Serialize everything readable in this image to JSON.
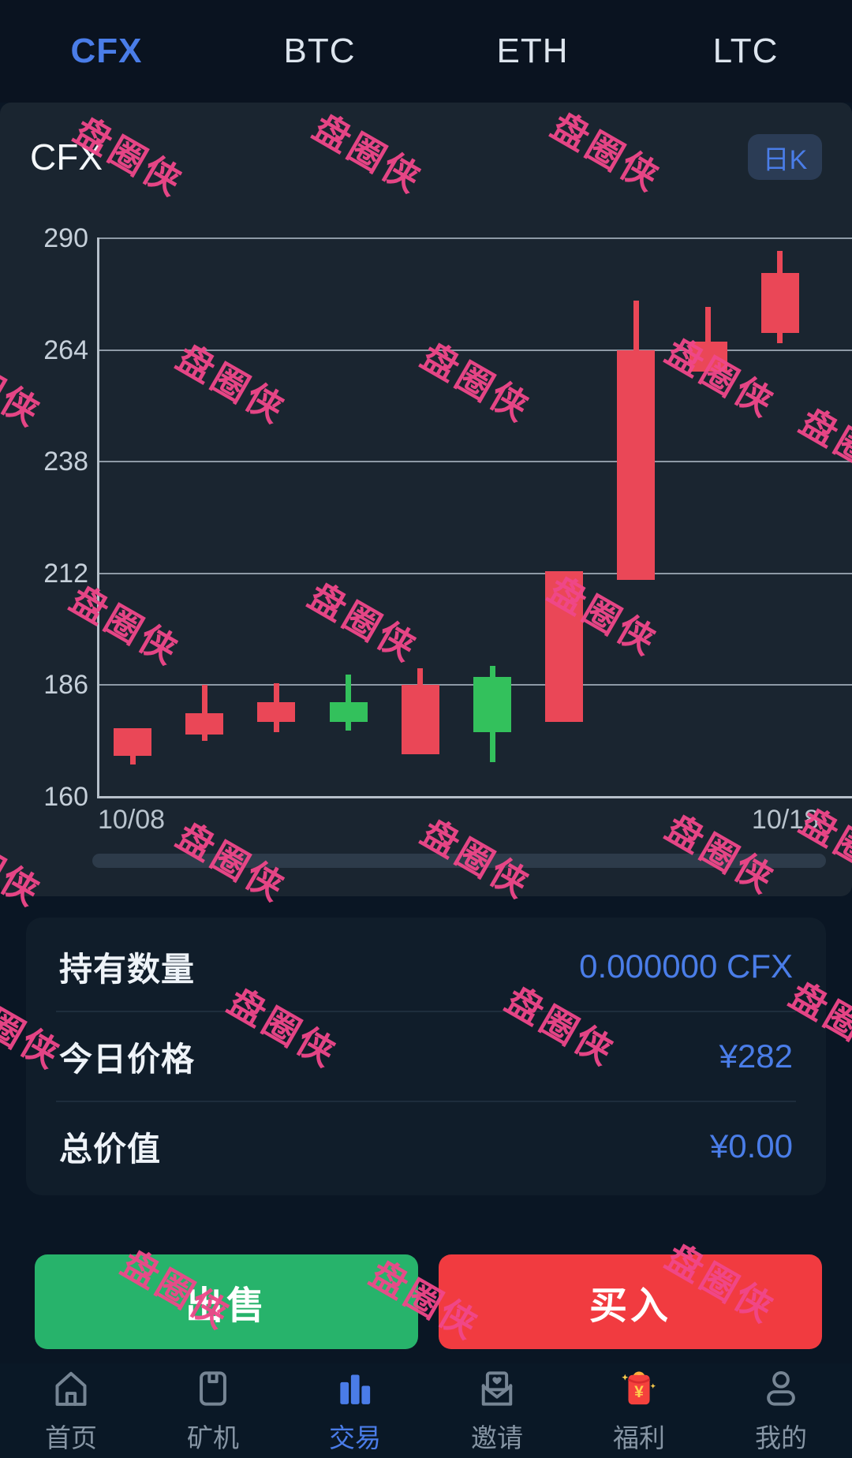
{
  "tabs": [
    {
      "label": "CFX",
      "active": true
    },
    {
      "label": "BTC",
      "active": false
    },
    {
      "label": "ETH",
      "active": false
    },
    {
      "label": "LTC",
      "active": false
    }
  ],
  "chart": {
    "title": "CFX",
    "period_badge": "日K",
    "x_axis_labels": [
      "10/08",
      "10/18"
    ]
  },
  "chart_data": {
    "type": "candlestick",
    "title": "CFX",
    "period": "日K",
    "ylim": [
      160,
      290
    ],
    "y_ticks": [
      290,
      264,
      238,
      212,
      186,
      160
    ],
    "x_labels_visible": [
      "10/08",
      "10/18"
    ],
    "up_color": "#ea4757",
    "down_color": "#33c15c",
    "grid": true,
    "candles": [
      {
        "open": 169.5,
        "close": 176,
        "high": 176,
        "low": 167.5
      },
      {
        "open": 174.5,
        "close": 179.5,
        "high": 186,
        "low": 173
      },
      {
        "open": 177.5,
        "close": 182,
        "high": 186.5,
        "low": 175
      },
      {
        "open": 182,
        "close": 177.5,
        "high": 188.5,
        "low": 175.5
      },
      {
        "open": 170,
        "close": 186,
        "high": 190,
        "low": 170
      },
      {
        "open": 188,
        "close": 175,
        "high": 190.5,
        "low": 168
      },
      {
        "open": 177.5,
        "close": 212.5,
        "high": 212.5,
        "low": 177.5
      },
      {
        "open": 210.5,
        "close": 264,
        "high": 275.5,
        "low": 210.5
      },
      {
        "open": 259,
        "close": 266,
        "high": 274,
        "low": 259
      },
      {
        "open": 268,
        "close": 282,
        "high": 287,
        "low": 265.5
      }
    ]
  },
  "holdings": {
    "rows": [
      {
        "label": "持有数量",
        "value": "0.000000 CFX"
      },
      {
        "label": "今日价格",
        "value": "¥282"
      },
      {
        "label": "总价值",
        "value": "¥0.00"
      }
    ]
  },
  "actions": {
    "sell": "出售",
    "buy": "买入"
  },
  "nav": {
    "items": [
      {
        "label": "首页",
        "icon": "home-icon",
        "active": false
      },
      {
        "label": "矿机",
        "icon": "miner-icon",
        "active": false
      },
      {
        "label": "交易",
        "icon": "trade-chart-icon",
        "active": true
      },
      {
        "label": "邀请",
        "icon": "invite-envelope-icon",
        "active": false
      },
      {
        "label": "福利",
        "icon": "red-packet-icon",
        "active": false
      },
      {
        "label": "我的",
        "icon": "profile-icon",
        "active": false
      }
    ]
  },
  "watermark": {
    "text": "盘圈侠",
    "color": "#f0478a"
  },
  "colors": {
    "accent_blue": "#4a7de8",
    "candle_up": "#ea4757",
    "candle_down": "#33c15c",
    "sell_green": "#27b36b",
    "buy_red": "#f13b40",
    "watermark_pink": "#f0478a"
  }
}
